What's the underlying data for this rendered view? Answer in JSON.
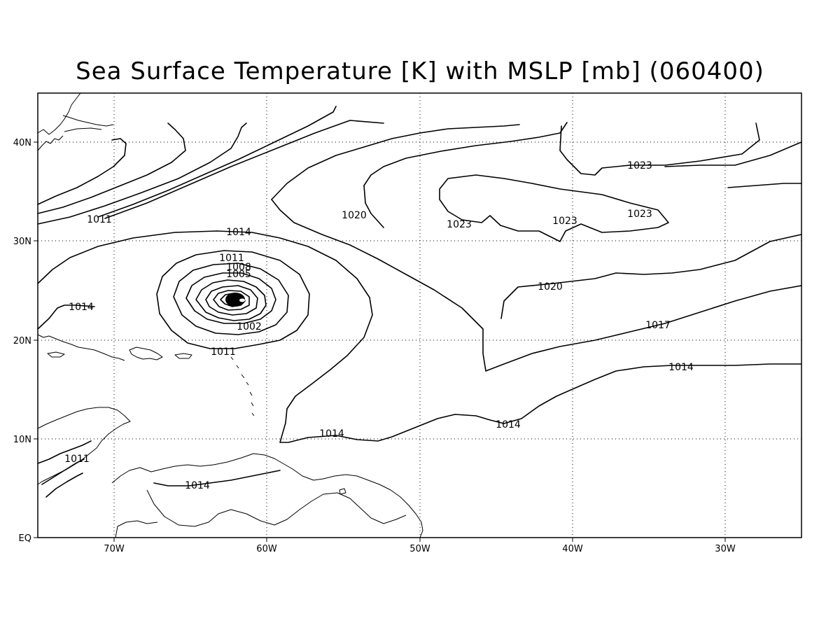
{
  "title": "Sea Surface Temperature [K] with MSLP [mb] (060400)",
  "axes": {
    "x_ticks": [
      "70W",
      "60W",
      "50W",
      "40W",
      "30W"
    ],
    "y_ticks": [
      "40N",
      "30N",
      "20N",
      "10N",
      "EQ"
    ]
  },
  "contour_labels": [
    "1011",
    "1014",
    "1020",
    "1023",
    "1023",
    "1023",
    "1023",
    "1011",
    "1008",
    "1005",
    "1002",
    "1011",
    "1014",
    "1020",
    "1017",
    "1014",
    "1014",
    "1014",
    "1011",
    "1014"
  ],
  "colors": {
    "lines": "#000000",
    "background": "#ffffff"
  }
}
